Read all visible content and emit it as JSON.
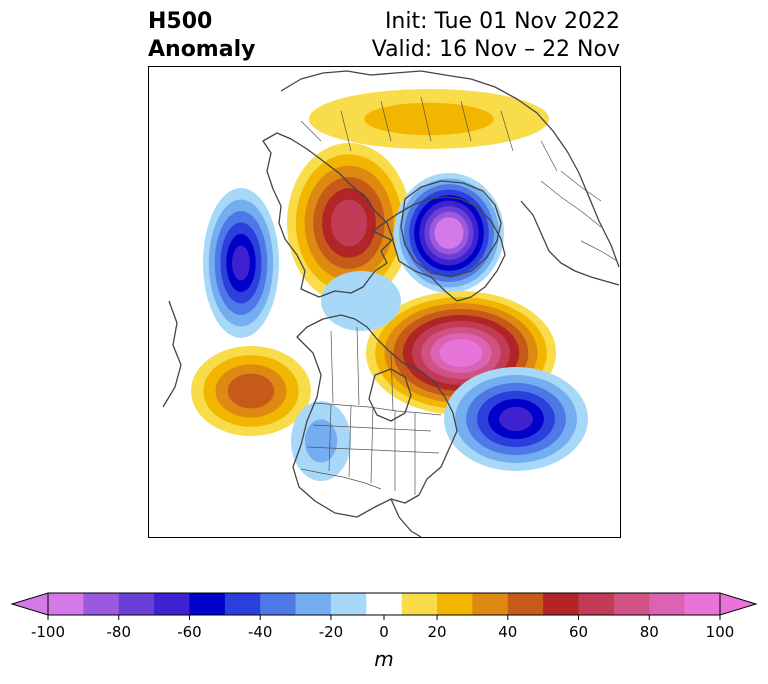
{
  "title": {
    "left": [
      "H500",
      "Anomaly"
    ],
    "right": [
      "Init: Tue 01 Nov 2022",
      "Valid: 16 Nov – 22 Nov"
    ]
  },
  "colorbar": {
    "levels": [
      -100,
      -90,
      -80,
      -70,
      -60,
      -50,
      -40,
      -30,
      -20,
      -10,
      10,
      20,
      30,
      40,
      50,
      60,
      70,
      80,
      90,
      100
    ],
    "colors": [
      "#d37ae8",
      "#9b59e0",
      "#6a3fd8",
      "#3e22d0",
      "#0000c8",
      "#2a3fdc",
      "#4e78e6",
      "#74aef0",
      "#a8d8f8",
      "#ffffff",
      "#f9dc4a",
      "#f2b600",
      "#de8a12",
      "#c65a18",
      "#b22526",
      "#c23c58",
      "#cf5283",
      "#dc63b3",
      "#e874da"
    ],
    "ticks": [
      "-100",
      "-80",
      "-60",
      "-40",
      "-20",
      "0",
      "20",
      "40",
      "60",
      "80",
      "100"
    ],
    "unit": "m",
    "extend": "both"
  },
  "anomalies": [
    {
      "label": "ridge-north-pacific-alaska",
      "center": [
        348,
        222
      ],
      "rx": 62,
      "ry": 80,
      "peak": 65
    },
    {
      "label": "ridge-arctic-siberia",
      "center": [
        428,
        118
      ],
      "rx": 120,
      "ry": 30,
      "peak": 20
    },
    {
      "label": "trough-arctic-greenland",
      "center": [
        448,
        232
      ],
      "rx": 55,
      "ry": 60,
      "peak": -100
    },
    {
      "label": "trough-west-pacific",
      "center": [
        240,
        262
      ],
      "rx": 38,
      "ry": 75,
      "peak": -60
    },
    {
      "label": "ridge-east-pacific",
      "center": [
        250,
        390
      ],
      "rx": 60,
      "ry": 45,
      "peak": 45
    },
    {
      "label": "ridge-canada",
      "center": [
        460,
        352
      ],
      "rx": 95,
      "ry": 62,
      "peak": 95
    },
    {
      "label": "trough-north-atlantic",
      "center": [
        515,
        418
      ],
      "rx": 72,
      "ry": 52,
      "peak": -60
    },
    {
      "label": "trough-western-us",
      "center": [
        320,
        440
      ],
      "rx": 30,
      "ry": 40,
      "peak": -20
    },
    {
      "label": "trough-hudson-bay-gap",
      "center": [
        360,
        300
      ],
      "rx": 40,
      "ry": 30,
      "peak": -15
    }
  ]
}
